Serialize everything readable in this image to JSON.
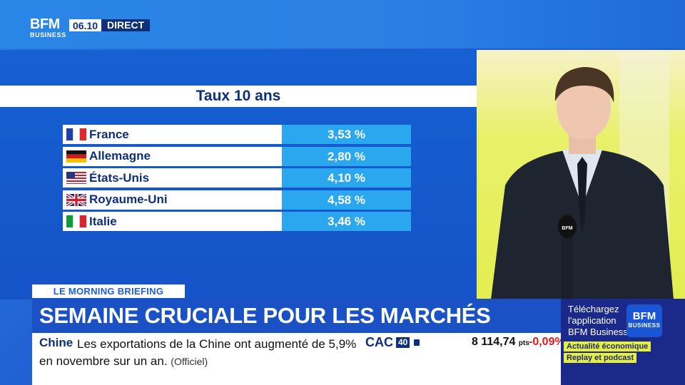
{
  "channel": {
    "logo_top": "BFM",
    "logo_bottom": "BUSINESS",
    "time": "06.10",
    "live": "DIRECT"
  },
  "panel": {
    "title": "Taux 10 ans",
    "rows": [
      {
        "country": "France",
        "value": "3,53 %",
        "flag": "france-flag"
      },
      {
        "country": "Allemagne",
        "value": "2,80 %",
        "flag": "germany-flag"
      },
      {
        "country": "États-Unis",
        "value": "4,10 %",
        "flag": "usa-flag"
      },
      {
        "country": "Royaume-Uni",
        "value": "4,58 %",
        "flag": "uk-flag"
      },
      {
        "country": "Italie",
        "value": "3,46 %",
        "flag": "italy-flag"
      }
    ]
  },
  "lower_third": {
    "tag": "LE MORNING BRIEFING",
    "headline": "SEMAINE CRUCIALE POUR LES MARCHÉS FINANCIERS"
  },
  "ticker": {
    "label": "Chine",
    "news": "Les exportations de la Chine ont augmenté de 5,9% en novembre sur un an.",
    "source": "(Officiel)",
    "index_name": "CAC",
    "index_box": "40",
    "index_value": "8 114,74",
    "index_unit": "pts",
    "index_change": "-0,09%"
  },
  "promo": {
    "line1": "Téléchargez",
    "line2": "l'application",
    "line3": "BFM Business",
    "logo_top": "BFM",
    "logo_bottom": "BUSINESS",
    "pill1": "Actualité économique",
    "pill2": "Replay et podcast"
  },
  "colors": {
    "brand_blue": "#1a52c6",
    "navy": "#0e2f7a",
    "value_blue": "#2aa7ee",
    "accent_yellow": "#e8ef3a",
    "negative_red": "#e01b1b"
  }
}
